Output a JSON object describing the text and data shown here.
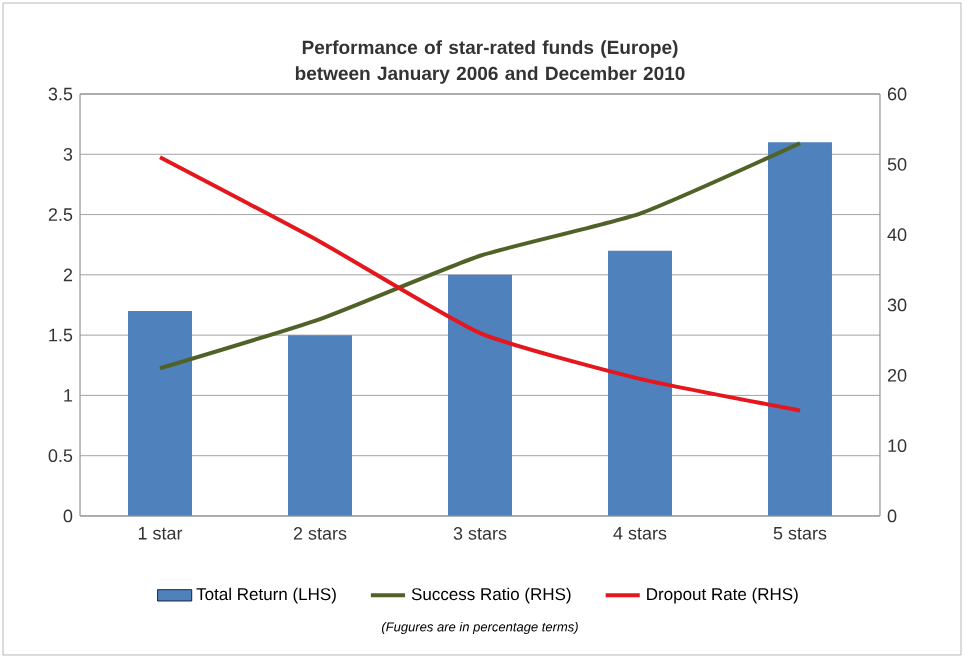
{
  "chart_data": {
    "type": "bar",
    "title": "Performance of star-rated funds (Europe) between January 2006 and December 2010",
    "categories": [
      "1 star",
      "2 stars",
      "3 stars",
      "4 stars",
      "5 stars"
    ],
    "series": [
      {
        "name": "Total Return (LHS)",
        "type": "bar",
        "color": "#4f81bd",
        "values": [
          1.7,
          1.5,
          2.0,
          2.2,
          3.1
        ]
      },
      {
        "name": "Success Ratio (RHS)",
        "type": "line",
        "axis": "y2",
        "color": "#4f6228",
        "values": [
          21,
          28,
          37,
          43,
          53
        ]
      },
      {
        "name": "Dropout Rate (RHS)",
        "type": "line",
        "axis": "y2",
        "color": "#e3171d",
        "values": [
          51,
          39,
          26,
          19.5,
          15
        ]
      }
    ],
    "ylim": [
      0,
      3.5
    ],
    "yticks": [
      0,
      0.5,
      1,
      1.5,
      2,
      2.5,
      3,
      3.5
    ],
    "y2lim": [
      0,
      60
    ],
    "y2ticks": [
      0,
      10,
      20,
      30,
      40,
      50,
      60
    ],
    "grid": "y",
    "legend": "bottom",
    "annotations": [
      "(Fugures are in percentage terms)"
    ]
  }
}
